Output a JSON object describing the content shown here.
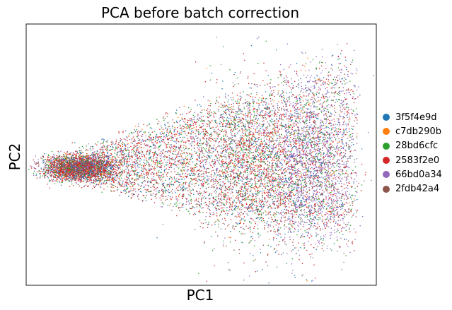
{
  "chart_data": {
    "type": "scatter",
    "title": "PCA before batch correction",
    "xlabel": "PC1",
    "ylabel": "PC2",
    "x_ticks": "none",
    "y_ticks": "none",
    "grid": false,
    "legend_position": "right",
    "series": [
      {
        "name": "3f5f4e9d",
        "color": "#1f77b4",
        "weight": 0.19
      },
      {
        "name": "c7db290b",
        "color": "#ff7f0e",
        "weight": 0.06
      },
      {
        "name": "28bd6cfc",
        "color": "#2ca02c",
        "weight": 0.16
      },
      {
        "name": "2583f2e0",
        "color": "#d62728",
        "weight": 0.27
      },
      {
        "name": "66bd0a34",
        "color": "#9467bd",
        "weight": 0.18
      },
      {
        "name": "2fdb42a4",
        "color": "#8c564b",
        "weight": 0.14
      }
    ]
  }
}
